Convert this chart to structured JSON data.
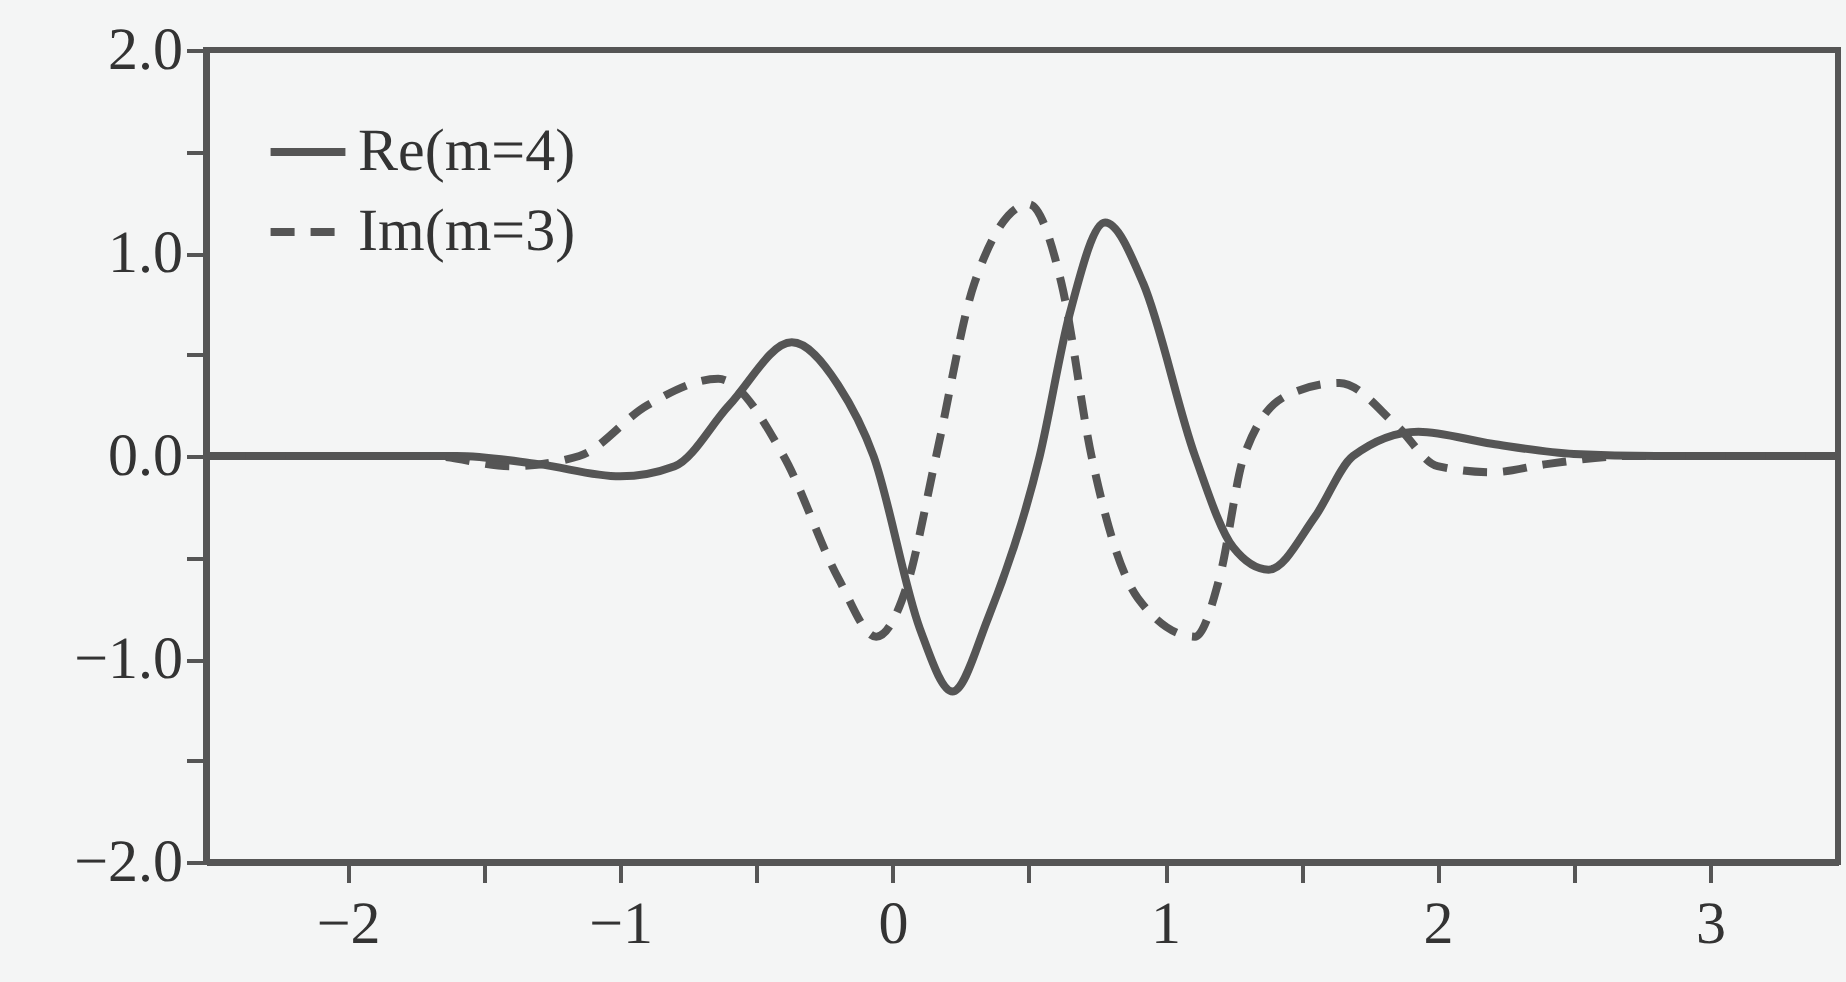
{
  "chart_data": {
    "type": "line",
    "xlim": [
      -2.52,
      3.47
    ],
    "xticks": [
      -2,
      {
        "value": -1.5,
        "label": null
      },
      {
        "value": -1,
        "label": "−1"
      },
      {
        "value": -0.5,
        "label": null
      },
      0,
      {
        "value": 0.5,
        "label": null
      },
      1,
      {
        "value": 1.5,
        "label": null
      },
      2,
      {
        "value": 2.5,
        "label": null
      },
      3
    ],
    "ylim": [
      -2,
      2
    ],
    "yticks": [
      {
        "value": -2,
        "label": "−2.0"
      },
      {
        "value": -1.5,
        "label": null
      },
      {
        "value": -1,
        "label": "−1.0"
      },
      {
        "value": -0.5,
        "label": null
      },
      {
        "value": 0,
        "label": "0.0"
      },
      {
        "value": 0.5,
        "label": null
      },
      {
        "value": 1,
        "label": "1.0"
      },
      {
        "value": 1.5,
        "label": null
      },
      {
        "value": 2,
        "label": "2.0"
      }
    ],
    "grid": false,
    "legend": "top left",
    "series": [
      {
        "name": "Re(m=4)",
        "color": "#555555",
        "line_style": "solid",
        "x": [
          -2.52,
          -1.6,
          -1.3,
          -1.0,
          -0.8,
          -0.6,
          -0.37,
          -0.2,
          -0.07,
          0.1,
          0.22,
          0.35,
          0.54,
          0.65,
          0.78,
          0.92,
          1.11,
          1.25,
          1.38,
          1.55,
          1.69,
          1.93,
          2.2,
          2.5,
          2.8,
          3.47
        ],
        "values": [
          0,
          0,
          -0.04,
          -0.1,
          -0.05,
          0.25,
          0.56,
          0.35,
          0,
          -0.85,
          -1.16,
          -0.8,
          0,
          0.7,
          1.15,
          0.85,
          0,
          -0.45,
          -0.56,
          -0.3,
          0,
          0.12,
          0.06,
          0.01,
          0,
          0
        ]
      },
      {
        "name": "Im(m=3)",
        "color": "#555555",
        "line_style": "dashed",
        "x": [
          -2.52,
          -1.7,
          -1.4,
          -1.15,
          -0.9,
          -0.64,
          -0.4,
          -0.2,
          -0.06,
          0.05,
          0.16,
          0.3,
          0.5,
          0.62,
          0.73,
          0.9,
          1.11,
          1.2,
          1.29,
          1.45,
          1.64,
          1.85,
          2.0,
          2.2,
          2.4,
          2.7,
          3.47
        ],
        "values": [
          0,
          0,
          -0.05,
          0,
          0.25,
          0.38,
          0,
          -0.6,
          -0.89,
          -0.65,
          0,
          0.85,
          1.24,
          0.85,
          0,
          -0.7,
          -0.89,
          -0.6,
          0,
          0.3,
          0.36,
          0.15,
          -0.05,
          -0.08,
          -0.04,
          0,
          0
        ]
      }
    ]
  }
}
